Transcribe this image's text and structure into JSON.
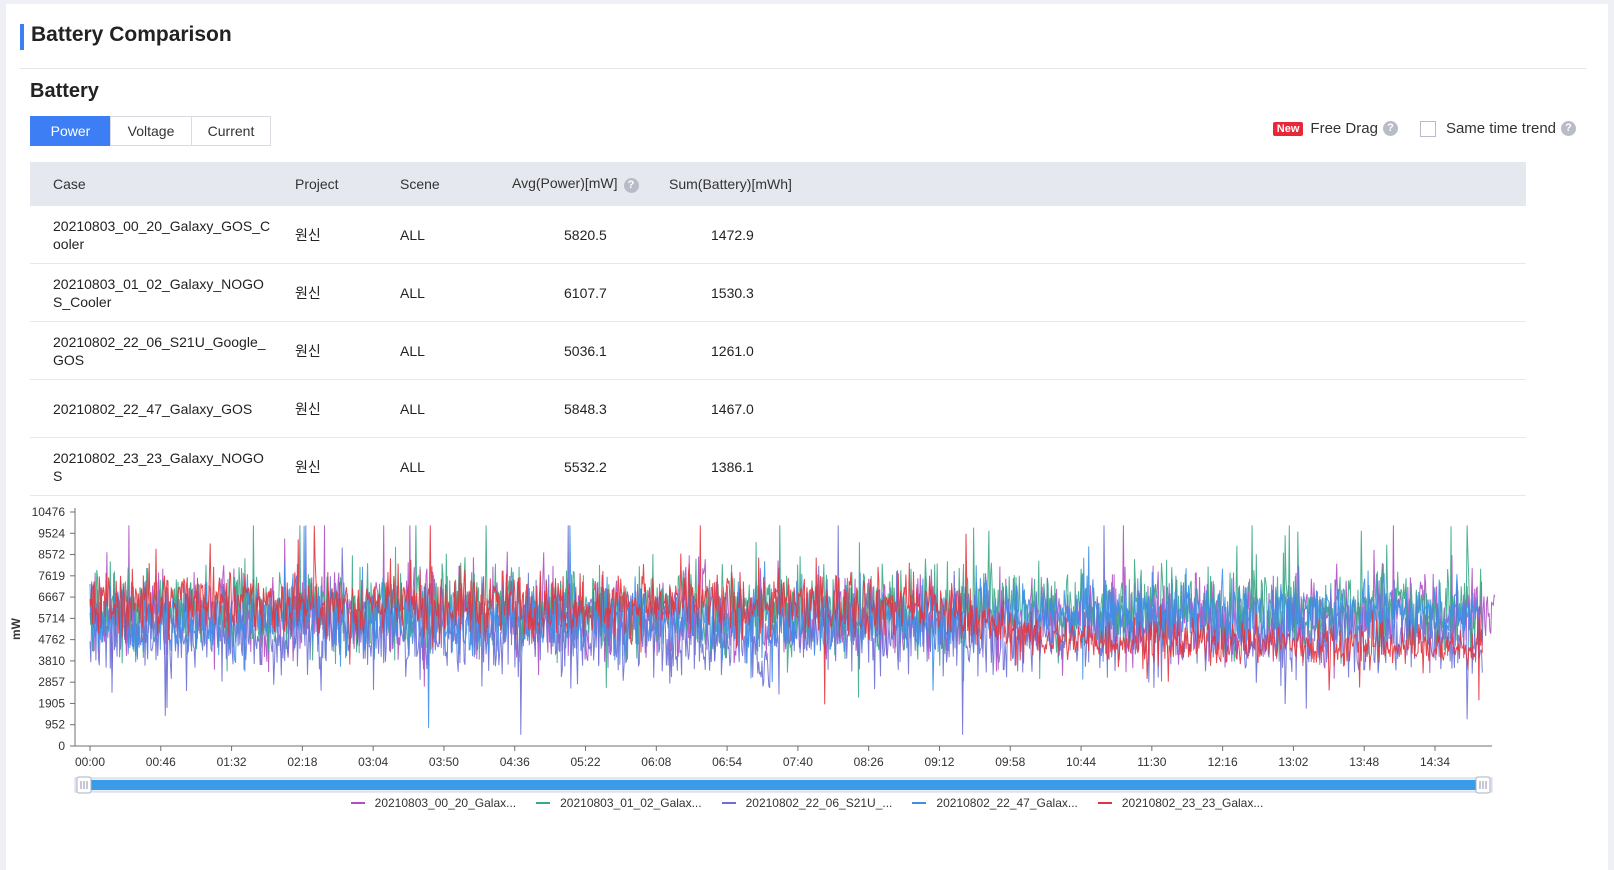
{
  "page": {
    "title": "Battery Comparison",
    "section_title": "Battery"
  },
  "tabs": [
    {
      "label": "Power",
      "active": true
    },
    {
      "label": "Voltage",
      "active": false
    },
    {
      "label": "Current",
      "active": false
    }
  ],
  "options": {
    "new_badge": "New",
    "free_drag_label": "Free Drag",
    "same_time_trend_label": "Same time trend",
    "same_time_trend_checked": false
  },
  "table": {
    "headers": [
      "Case",
      "Project",
      "Scene",
      "Avg(Power)[mW]",
      "Sum(Battery)[mWh]"
    ],
    "rows": [
      {
        "case": "20210803_00_20_Galaxy_GOS_Cooler",
        "project": "원신",
        "scene": "ALL",
        "avg": "5820.5",
        "sum": "1472.9"
      },
      {
        "case": "20210803_01_02_Galaxy_NOGOS_Cooler",
        "project": "원신",
        "scene": "ALL",
        "avg": "6107.7",
        "sum": "1530.3"
      },
      {
        "case": "20210802_22_06_S21U_Google_GOS",
        "project": "원신",
        "scene": "ALL",
        "avg": "5036.1",
        "sum": "1261.0"
      },
      {
        "case": "20210802_22_47_Galaxy_GOS",
        "project": "원신",
        "scene": "ALL",
        "avg": "5848.3",
        "sum": "1467.0"
      },
      {
        "case": "20210802_23_23_Galaxy_NOGOS",
        "project": "원신",
        "scene": "ALL",
        "avg": "5532.2",
        "sum": "1386.1"
      }
    ]
  },
  "chart_data": {
    "type": "line",
    "ylabel": "mW",
    "xlabel": "",
    "ylim": [
      0,
      10476
    ],
    "y_ticks": [
      "0",
      "952",
      "1905",
      "2857",
      "3810",
      "4762",
      "5714",
      "6667",
      "7619",
      "8572",
      "9524",
      "10476"
    ],
    "x_ticks": [
      "00:00",
      "00:46",
      "01:32",
      "02:18",
      "03:04",
      "03:50",
      "04:36",
      "05:22",
      "06:08",
      "06:54",
      "07:40",
      "08:26",
      "09:12",
      "09:58",
      "10:44",
      "11:30",
      "12:16",
      "13:02",
      "13:48",
      "14:34"
    ],
    "grid": false,
    "legend_position": "bottom",
    "series": [
      {
        "name": "20210803_00_20_Galax...",
        "color": "#b04fc4",
        "end_minutes": 913,
        "segments": [
          [
            0,
            5900,
            1300
          ],
          [
            913,
            5800,
            1300
          ]
        ]
      },
      {
        "name": "20210803_01_02_Galax...",
        "color": "#3aa886",
        "end_minutes": 905,
        "segments": [
          [
            0,
            6100,
            1300
          ],
          [
            905,
            6100,
            1300
          ]
        ]
      },
      {
        "name": "20210802_22_06_S21U_...",
        "color": "#6c70d6",
        "end_minutes": 905,
        "segments": [
          [
            0,
            5100,
            1300
          ],
          [
            430,
            5100,
            1300
          ],
          [
            435,
            3000,
            400
          ],
          [
            445,
            5100,
            1300
          ],
          [
            905,
            5000,
            1300
          ]
        ]
      },
      {
        "name": "20210802_22_47_Galax...",
        "color": "#3d8fe8",
        "end_minutes": 905,
        "segments": [
          [
            0,
            5700,
            1100
          ],
          [
            560,
            5700,
            1100
          ],
          [
            600,
            6000,
            900
          ],
          [
            905,
            6000,
            900
          ]
        ]
      },
      {
        "name": "20210802_23_23_Galax...",
        "color": "#e3343c",
        "end_minutes": 905,
        "segments": [
          [
            0,
            6400,
            1000
          ],
          [
            550,
            6300,
            1000
          ],
          [
            610,
            4800,
            700
          ],
          [
            905,
            4400,
            700
          ]
        ]
      }
    ]
  }
}
